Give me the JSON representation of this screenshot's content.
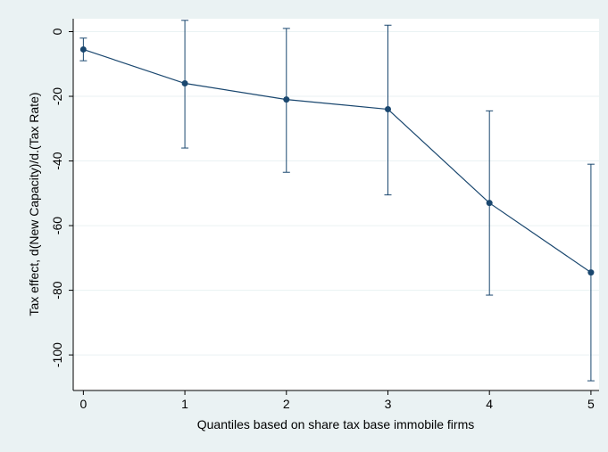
{
  "chart_data": {
    "type": "line",
    "xlabel": "Quantiles based on share tax base immobile firms",
    "ylabel": "Tax effect, d(New Capacity)/d.(Tax Rate)",
    "x": [
      0,
      1,
      2,
      3,
      4,
      5
    ],
    "xlim": [
      -0.1,
      5.08
    ],
    "ylim": [
      -111,
      4
    ],
    "xticks": [
      0,
      1,
      2,
      3,
      4,
      5
    ],
    "yticks": [
      0,
      -20,
      -40,
      -60,
      -80,
      -100
    ],
    "grid": true,
    "series": [
      {
        "values": [
          -5.5,
          -16,
          -21,
          -24,
          -53,
          -74.5
        ],
        "ci_low": [
          -9,
          -36,
          -43.5,
          -50.5,
          -81.5,
          -108
        ],
        "ci_high": [
          -2,
          3.5,
          1,
          2,
          -24.5,
          -41
        ],
        "color": "#1a476f"
      }
    ],
    "colors": {
      "background": "#eaf2f3",
      "plot_area": "#ffffff",
      "grid": "#eaf2f3",
      "line": "#1a476f",
      "marker": "#1a476f"
    }
  }
}
